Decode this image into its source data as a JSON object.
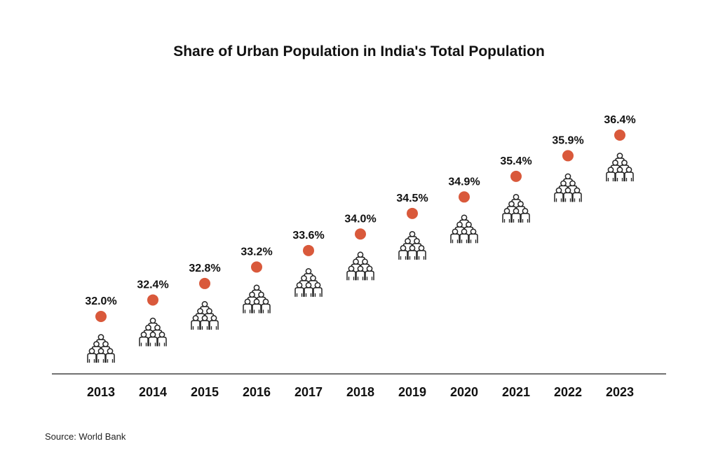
{
  "chart_data": {
    "type": "scatter",
    "title": "Share of Urban Population in India's Total Population",
    "categories": [
      "2013",
      "2014",
      "2015",
      "2016",
      "2017",
      "2018",
      "2019",
      "2020",
      "2021",
      "2022",
      "2023"
    ],
    "values": [
      32.0,
      32.4,
      32.8,
      33.2,
      33.6,
      34.0,
      34.5,
      34.9,
      35.4,
      35.9,
      36.4
    ],
    "value_labels": [
      "32.0%",
      "32.4%",
      "32.8%",
      "33.2%",
      "33.6%",
      "34.0%",
      "34.5%",
      "34.9%",
      "35.4%",
      "35.9%",
      "36.4%"
    ],
    "xlabel": "",
    "ylabel": "",
    "grid": false,
    "marker_color": "#d9593b",
    "icon": "people-group-icon"
  },
  "source": "Source: World Bank"
}
